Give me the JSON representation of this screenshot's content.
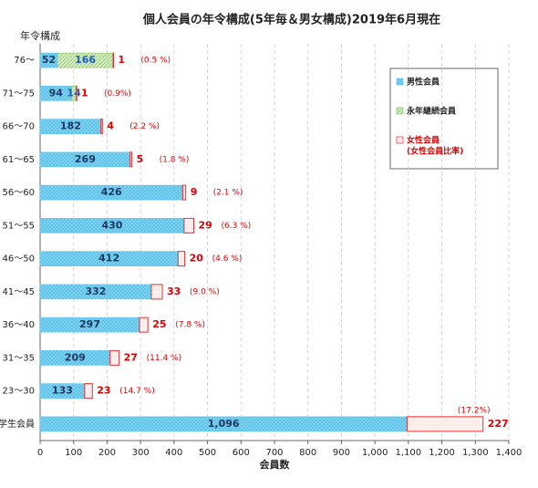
{
  "chart_data": {
    "type": "bar",
    "orientation": "horizontal",
    "stacked": true,
    "title": "個人会員の年令構成(5年毎＆男女構成)2019年6月現在",
    "y_label": "年令構成",
    "x_label": "会員数",
    "categories": [
      "76〜",
      "71〜75",
      "66〜70",
      "61〜65",
      "56〜60",
      "51〜55",
      "46〜50",
      "41〜45",
      "36〜40",
      "31〜35",
      "23〜30",
      "学生会員"
    ],
    "series": [
      {
        "name": "男性会員",
        "color": "#5cc3ea",
        "values": [
          52,
          94,
          182,
          269,
          426,
          430,
          412,
          332,
          297,
          209,
          133,
          1096
        ],
        "value_labels": [
          "52",
          "94",
          "182",
          "269",
          "426",
          "430",
          "412",
          "332",
          "297",
          "209",
          "133",
          "1,096"
        ]
      },
      {
        "name": "永年継続会員",
        "color": "#8cc66a",
        "values": [
          166,
          14,
          null,
          null,
          null,
          null,
          null,
          null,
          null,
          null,
          null,
          null
        ]
      },
      {
        "name": "女性会員",
        "color": "#e03030",
        "values": [
          1,
          1,
          4,
          5,
          9,
          29,
          20,
          33,
          25,
          27,
          23,
          227
        ]
      }
    ],
    "legend_note": "(女性会員比率)",
    "ratio_labels": [
      "(0.5 %)",
      "(0.9%)",
      "(2.2 %)",
      "(1.8 %)",
      "(2.1 %)",
      "(6.3 %)",
      "(4.6 %)",
      "(9.0 %)",
      "(7.8 %)",
      "(11.4 %)",
      "(14.7 %)",
      "(17.2%)"
    ],
    "xlim": [
      0,
      1400
    ],
    "xticks": [
      0,
      100,
      200,
      300,
      400,
      500,
      600,
      700,
      800,
      900,
      {
        "value": 1000,
        "label": "1,000"
      },
      {
        "value": 1100,
        "label": "1,100"
      },
      {
        "value": 1200,
        "label": "1,200"
      },
      {
        "value": 1300,
        "label": "1,300"
      },
      {
        "value": 1400,
        "label": "1,400"
      }
    ],
    "grid": true,
    "legend": "upper right"
  }
}
